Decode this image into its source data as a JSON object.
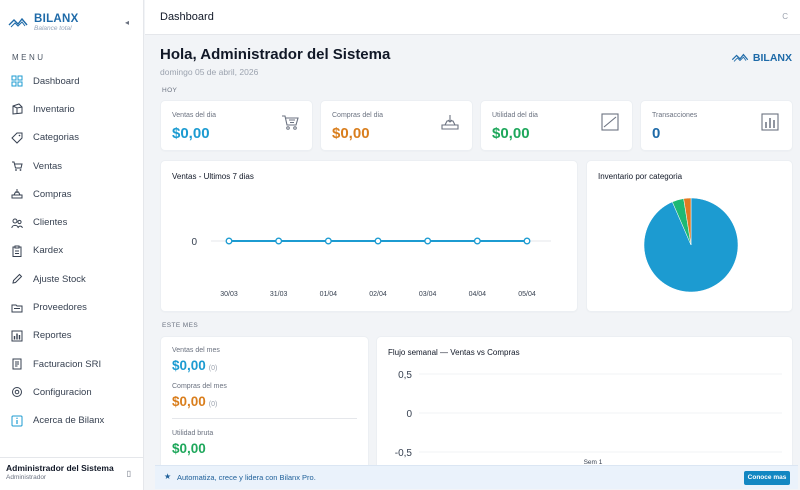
{
  "brand": {
    "name": "BILANX",
    "tagline": "Balance total",
    "logo_caption": "BILANX"
  },
  "sidebar": {
    "collapse_icon": "double-chevron-left-icon",
    "menu_label": "MENU",
    "items": [
      {
        "label": "Dashboard",
        "icon": "grid-icon"
      },
      {
        "label": "Inventario",
        "icon": "box-icon"
      },
      {
        "label": "Categorias",
        "icon": "tag-icon"
      },
      {
        "label": "Ventas",
        "icon": "cart-icon"
      },
      {
        "label": "Compras",
        "icon": "tray-icon"
      },
      {
        "label": "Clientes",
        "icon": "users-icon"
      },
      {
        "label": "Kardex",
        "icon": "clipboard-icon"
      },
      {
        "label": "Ajuste Stock",
        "icon": "pencil-icon"
      },
      {
        "label": "Proveedores",
        "icon": "folder-icon"
      },
      {
        "label": "Reportes",
        "icon": "bar-chart-icon"
      },
      {
        "label": "Facturacion SRI",
        "icon": "invoice-icon"
      },
      {
        "label": "Configuracion",
        "icon": "gear-icon"
      },
      {
        "label": "Acerca de Bilanx",
        "icon": "info-icon"
      }
    ],
    "user": {
      "name": "Administrador del Sistema",
      "role": "Administrador"
    }
  },
  "topbar": {
    "title": "Dashboard",
    "right_icon_text": "C"
  },
  "header": {
    "greeting": "Hola, Administrador del Sistema",
    "date": "domingo 05 de abril, 2026",
    "logo_text": "BILANX"
  },
  "today": {
    "label": "HOY",
    "kpis": [
      {
        "title": "Ventas del dia",
        "value": "$0,00",
        "color": "#1c9bd1",
        "icon": "cart-icon"
      },
      {
        "title": "Compras del dia",
        "value": "$0,00",
        "color": "#d97e1d",
        "icon": "tray-icon"
      },
      {
        "title": "Utilidad del dia",
        "value": "$0,00",
        "color": "#1ea75b",
        "icon": "trend-icon"
      },
      {
        "title": "Transacciones",
        "value": "0",
        "color": "#1e6aa8",
        "icon": "bar-chart-icon"
      }
    ]
  },
  "sales_chart": {
    "title": "Ventas - Ultimos 7 dias"
  },
  "category_chart": {
    "title": "Inventario por categoria"
  },
  "month": {
    "label": "ESTE MES",
    "sales_label": "Ventas del mes",
    "sales_value": "$0,00",
    "sales_count": "(0)",
    "purchases_label": "Compras del mes",
    "purchases_value": "$0,00",
    "purchases_count": "(0)",
    "gross_label": "Utilidad bruta",
    "gross_value": "$0,00"
  },
  "flow_chart": {
    "title": "Flujo semanal — Ventas vs Compras"
  },
  "promo": {
    "text": "Automatiza, crece y lidera con Bilanx Pro.",
    "button": "Conoce mas"
  },
  "chart_data": [
    {
      "type": "line",
      "title": "Ventas - Ultimos 7 dias",
      "x": [
        "30/03",
        "31/03",
        "01/04",
        "02/04",
        "03/04",
        "04/04",
        "05/04"
      ],
      "series": [
        {
          "values": [
            0,
            0,
            0,
            0,
            0,
            0,
            0
          ],
          "color": "#1c9bd1"
        }
      ],
      "y_ticks": [
        "0"
      ],
      "grid": false
    },
    {
      "type": "pie",
      "title": "Inventario por categoria",
      "slices": [
        {
          "value": 0.935,
          "color": "#1c9bd1"
        },
        {
          "value": 0.04,
          "color": "#1db974"
        },
        {
          "value": 0.025,
          "color": "#e17a22"
        }
      ]
    },
    {
      "type": "bar",
      "title": "Flujo semanal — Ventas vs Compras",
      "categories": [
        "Sem 1"
      ],
      "y_ticks": [
        "0,5",
        "0",
        "-0,5"
      ],
      "ylim": [
        -0.5,
        0.5
      ],
      "series": []
    }
  ]
}
